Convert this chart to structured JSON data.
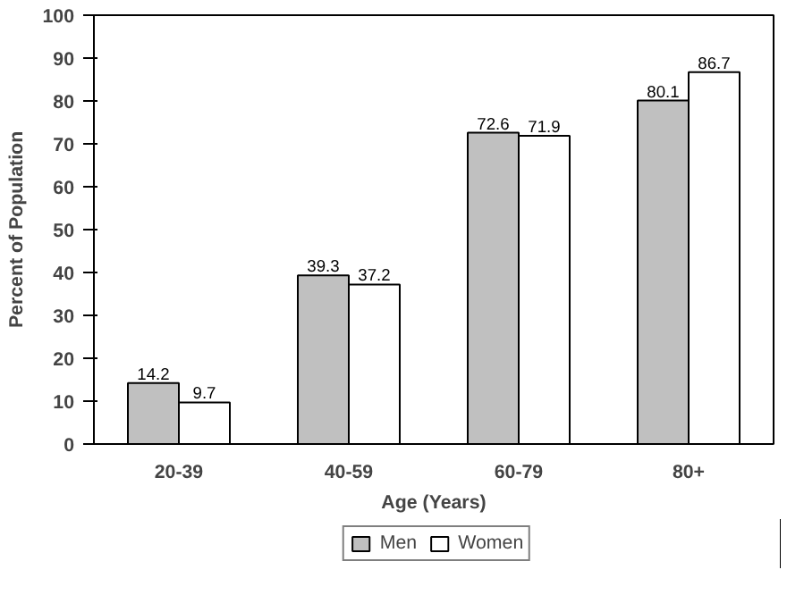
{
  "chart_data": {
    "type": "bar",
    "xlabel": "Age (Years)",
    "ylabel": "Percent of Population",
    "categories": [
      "20-39",
      "40-59",
      "60-79",
      "80+"
    ],
    "series": [
      {
        "name": "Men",
        "color": "#c0c0c0",
        "values": [
          14.2,
          39.3,
          72.6,
          80.1
        ]
      },
      {
        "name": "Women",
        "color": "#ffffff",
        "values": [
          9.7,
          37.2,
          71.9,
          86.7
        ]
      }
    ],
    "ylim": [
      0,
      100
    ],
    "yticks": [
      0,
      10,
      20,
      30,
      40,
      50,
      60,
      70,
      80,
      90,
      100
    ],
    "data_labels": true,
    "legend": "bottom",
    "grid": false
  }
}
